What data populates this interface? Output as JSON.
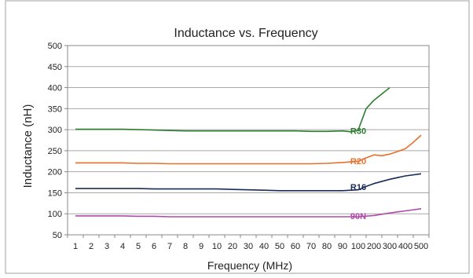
{
  "chart_data": {
    "type": "line",
    "title": "Inductance vs. Frequency",
    "xlabel": "Frequency (MHz)",
    "ylabel": "Inductance (nH)",
    "x_scale": "categorical",
    "categories": [
      "1",
      "2",
      "3",
      "4",
      "5",
      "6",
      "7",
      "8",
      "9",
      "10",
      "20",
      "30",
      "40",
      "50",
      "60",
      "70",
      "80",
      "90",
      "100",
      "200",
      "300",
      "400",
      "500"
    ],
    "ylim": [
      50,
      500
    ],
    "yticks": [
      50,
      100,
      150,
      200,
      250,
      300,
      350,
      400,
      450,
      500
    ],
    "grid": "horizontal",
    "legend": "inline labels",
    "series": [
      {
        "name": "R30",
        "color": "#2e7d32",
        "points": [
          [
            1,
            301
          ],
          [
            2,
            301
          ],
          [
            3,
            301
          ],
          [
            4,
            301
          ],
          [
            5,
            300
          ],
          [
            6,
            299
          ],
          [
            7,
            298
          ],
          [
            8,
            297
          ],
          [
            9,
            297
          ],
          [
            10,
            297
          ],
          [
            20,
            297
          ],
          [
            30,
            297
          ],
          [
            40,
            297
          ],
          [
            50,
            297
          ],
          [
            60,
            297
          ],
          [
            70,
            296
          ],
          [
            80,
            296
          ],
          [
            90,
            297
          ],
          [
            95,
            295
          ],
          [
            100,
            298
          ],
          [
            110,
            310
          ],
          [
            150,
            350
          ],
          [
            200,
            370
          ],
          [
            250,
            385
          ],
          [
            300,
            400
          ]
        ]
      },
      {
        "name": "R20",
        "color": "#e8702a",
        "points": [
          [
            1,
            221
          ],
          [
            2,
            221
          ],
          [
            3,
            221
          ],
          [
            4,
            221
          ],
          [
            5,
            220
          ],
          [
            6,
            220
          ],
          [
            7,
            219
          ],
          [
            8,
            219
          ],
          [
            9,
            219
          ],
          [
            10,
            219
          ],
          [
            20,
            219
          ],
          [
            30,
            219
          ],
          [
            40,
            219
          ],
          [
            50,
            219
          ],
          [
            60,
            219
          ],
          [
            70,
            219
          ],
          [
            80,
            220
          ],
          [
            90,
            222
          ],
          [
            100,
            225
          ],
          [
            150,
            233
          ],
          [
            200,
            240
          ],
          [
            250,
            238
          ],
          [
            300,
            242
          ],
          [
            350,
            248
          ],
          [
            400,
            255
          ],
          [
            450,
            270
          ],
          [
            500,
            287
          ]
        ]
      },
      {
        "name": "R16",
        "color": "#1a2c5b",
        "points": [
          [
            1,
            160
          ],
          [
            2,
            160
          ],
          [
            3,
            160
          ],
          [
            4,
            160
          ],
          [
            5,
            160
          ],
          [
            6,
            159
          ],
          [
            7,
            159
          ],
          [
            8,
            159
          ],
          [
            9,
            159
          ],
          [
            10,
            159
          ],
          [
            20,
            158
          ],
          [
            30,
            157
          ],
          [
            40,
            156
          ],
          [
            50,
            155
          ],
          [
            60,
            155
          ],
          [
            70,
            155
          ],
          [
            80,
            155
          ],
          [
            90,
            155
          ],
          [
            100,
            157
          ],
          [
            150,
            165
          ],
          [
            200,
            172
          ],
          [
            300,
            182
          ],
          [
            400,
            190
          ],
          [
            500,
            195
          ]
        ]
      },
      {
        "name": "90N",
        "color": "#b04aa8",
        "points": [
          [
            1,
            95
          ],
          [
            2,
            95
          ],
          [
            3,
            95
          ],
          [
            4,
            95
          ],
          [
            5,
            94
          ],
          [
            6,
            94
          ],
          [
            7,
            93
          ],
          [
            8,
            93
          ],
          [
            9,
            93
          ],
          [
            10,
            93
          ],
          [
            20,
            93
          ],
          [
            30,
            93
          ],
          [
            40,
            93
          ],
          [
            50,
            93
          ],
          [
            60,
            93
          ],
          [
            70,
            93
          ],
          [
            80,
            93
          ],
          [
            90,
            93
          ],
          [
            100,
            93
          ],
          [
            200,
            96
          ],
          [
            300,
            102
          ],
          [
            400,
            107
          ],
          [
            500,
            112
          ]
        ]
      }
    ]
  }
}
